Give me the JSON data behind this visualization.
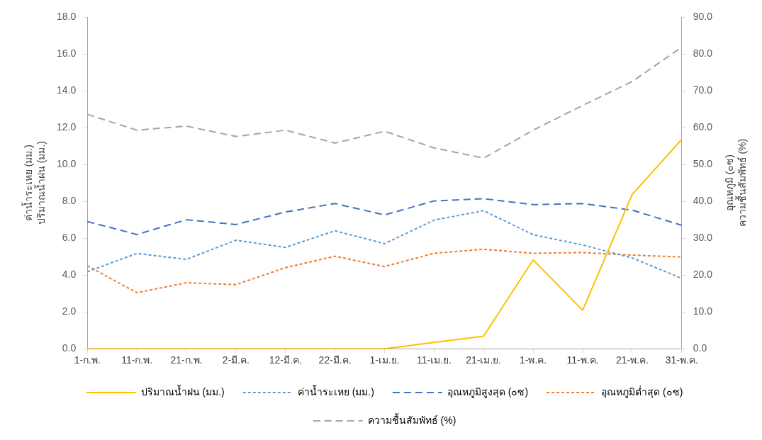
{
  "chart_data": {
    "type": "line",
    "categories": [
      "1-ก.พ.",
      "11-ก.พ.",
      "21-ก.พ.",
      "2-มี.ค.",
      "12-มี.ค.",
      "22-มี.ค.",
      "1-เม.ย.",
      "11-เม.ย.",
      "21-เม.ย.",
      "1-พ.ค.",
      "11-พ.ค.",
      "21-พ.ค.",
      "31-พ.ค."
    ],
    "series": [
      {
        "name": "ปริมาณน้ำฝน (มม.)",
        "color": "#ffc000",
        "line_style": "solid",
        "values": [
          0,
          0,
          0,
          0,
          0,
          0,
          0,
          0.34,
          0.68,
          4.82,
          2.09,
          8.37,
          11.36
        ]
      },
      {
        "name": "ค่าน้ำระเหย (มม.)",
        "color": "#5b9bd5",
        "line_style": "dotted",
        "values": [
          4.18,
          5.17,
          4.85,
          5.89,
          5.5,
          6.4,
          5.7,
          6.98,
          7.49,
          6.19,
          5.63,
          4.93,
          3.82
        ]
      },
      {
        "name": "อุณหภูมิสูงสุด (๐ซ)",
        "color": "#4472c4",
        "line_style": "dashed",
        "axis": "y2",
        "values": [
          34.5,
          31.0,
          35.0,
          33.7,
          37.1,
          39.4,
          36.3,
          40.1,
          40.7,
          39.1,
          39.4,
          37.6,
          33.5
        ]
      },
      {
        "name": "อุณหภูมิต่ำสุด (๐ซ)",
        "color": "#ed7d31",
        "line_style": "dotted",
        "axis": "y2",
        "values": [
          22.5,
          15.2,
          17.9,
          17.4,
          22.0,
          25.1,
          22.3,
          25.9,
          27.0,
          25.9,
          26.1,
          25.4,
          24.9
        ]
      },
      {
        "name": "ความชื้นสัมพัทธ์ (%)",
        "color": "#a5a5a5",
        "line_style": "dashed",
        "axis": "y2",
        "values": [
          63.6,
          59.3,
          60.4,
          57.6,
          59.3,
          55.8,
          59.0,
          54.5,
          51.7,
          59.3,
          66.0,
          72.5,
          81.8
        ]
      }
    ],
    "ylabel": "ค่าน้ำระเหย (มม.)\nปริมาณน้ำฝน (มม.)",
    "y2label": "อุณหภูมิ (๐ซ)\nความชื้นสัมพัทธ์ (%)",
    "ylim": [
      0,
      18
    ],
    "yticks": [
      {
        "value": 0,
        "label": "0.0"
      },
      {
        "value": 2,
        "label": "2.0"
      },
      {
        "value": 4,
        "label": "4.0"
      },
      {
        "value": 6,
        "label": "6.0"
      },
      {
        "value": 8,
        "label": "8.0"
      },
      {
        "value": 10,
        "label": "10.0"
      },
      {
        "value": 12,
        "label": "12.0"
      },
      {
        "value": 14,
        "label": "14.0"
      },
      {
        "value": 16,
        "label": "16.0"
      },
      {
        "value": 18,
        "label": "18.0"
      }
    ],
    "y2lim": [
      0,
      90
    ],
    "y2ticks": [
      {
        "value": 0,
        "label": "0.0"
      },
      {
        "value": 10,
        "label": "10.0"
      },
      {
        "value": 20,
        "label": "20.0"
      },
      {
        "value": 30,
        "label": "30.0"
      },
      {
        "value": 40,
        "label": "40.0"
      },
      {
        "value": 50,
        "label": "50.0"
      },
      {
        "value": 60,
        "label": "60.0"
      },
      {
        "value": 70,
        "label": "70.0"
      },
      {
        "value": 80,
        "label": "80.0"
      },
      {
        "value": 90,
        "label": "90.0"
      }
    ],
    "grid": false,
    "legend": "bottom",
    "marker": "none"
  }
}
